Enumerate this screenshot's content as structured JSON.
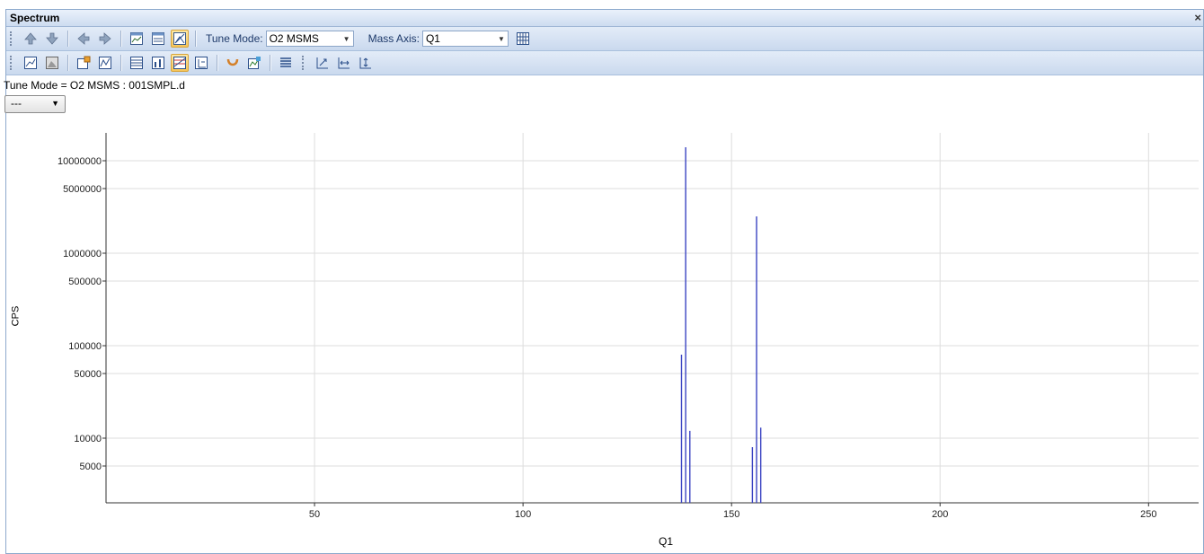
{
  "window": {
    "title": "Spectrum",
    "close_glyph": "×"
  },
  "toolbar1": {
    "buttons": [
      {
        "icon": "arrow-up-icon"
      },
      {
        "icon": "arrow-down-icon"
      },
      {
        "icon": "arrow-left-icon"
      },
      {
        "icon": "arrow-right-icon"
      },
      {
        "icon": "spectrum-window-icon"
      },
      {
        "icon": "spectrum-window-alt-icon"
      },
      {
        "icon": "spectrum-view-icon",
        "active": true
      }
    ],
    "tune_mode_label": "Tune Mode:",
    "tune_mode_value": "O2 MSMS",
    "mass_axis_label": "Mass Axis:",
    "mass_axis_value": "Q1",
    "table_button_icon": "table-icon"
  },
  "toolbar2": {
    "buttons": [
      "line-chart-icon",
      "area-chart-icon",
      "export-chart-icon",
      "chart-settings-icon",
      "list-view-icon",
      "bar-view-icon",
      "overlay-icon",
      "stack-view-icon",
      "peak-label-icon",
      "peak-find-icon",
      "align-icon",
      "autoscale-icon",
      "x-zoom-icon",
      "y-zoom-icon"
    ],
    "active_index": 6
  },
  "info_line": "Tune Mode =  O2 MSMS : 001SMPL.d",
  "trace_selector": {
    "value": "---"
  },
  "colors": {
    "trace": "#3a43c2",
    "grid": "#dedede",
    "accent": "#f6c55a"
  },
  "chart_data": {
    "type": "bar",
    "xlabel": "Q1",
    "ylabel": "CPS",
    "yscale": "log",
    "xlim": [
      0,
      262
    ],
    "ylim": [
      2000,
      20000000
    ],
    "grid": true,
    "xticks": [
      50,
      100,
      150,
      200,
      250
    ],
    "yticks": [
      10000000,
      5000000,
      1000000,
      500000,
      100000,
      50000,
      10000,
      5000
    ],
    "ytick_labels": [
      "10000000",
      "5000000",
      "1000000",
      "500000",
      "100000",
      "50000",
      "10000",
      "5000"
    ],
    "peaks": [
      {
        "x": 138,
        "y": 80000
      },
      {
        "x": 139,
        "y": 14000000
      },
      {
        "x": 140,
        "y": 12000
      },
      {
        "x": 155,
        "y": 8000
      },
      {
        "x": 156,
        "y": 2500000
      },
      {
        "x": 157,
        "y": 13000
      }
    ]
  }
}
